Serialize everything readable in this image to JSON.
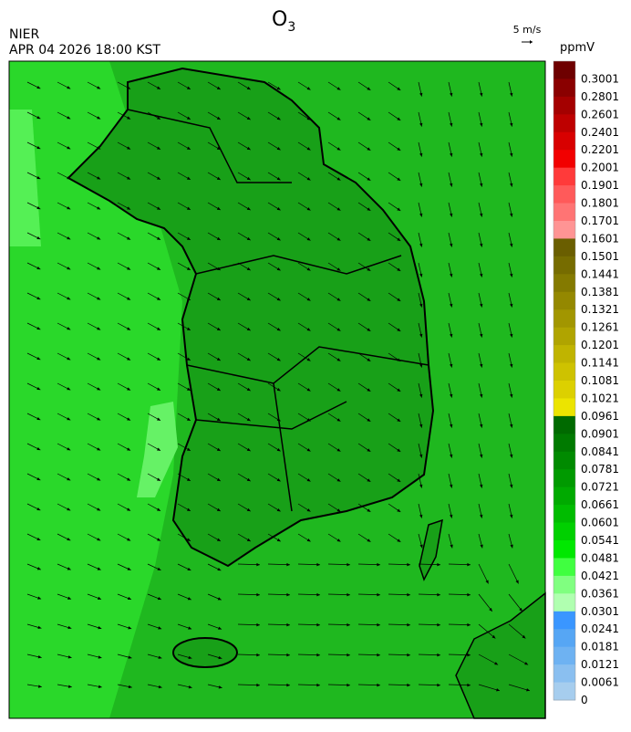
{
  "header": {
    "title": "O",
    "title_subscript": "3",
    "agency": "NIER",
    "timestamp": "APR 04 2026 18:00 KST"
  },
  "wind_scale": {
    "label": "5 m/s"
  },
  "legend": {
    "unit": "ppmV",
    "levels": [
      {
        "label": "0.3001",
        "color": "#6e0000"
      },
      {
        "label": "0.2801",
        "color": "#8a0000"
      },
      {
        "label": "0.2601",
        "color": "#a40000"
      },
      {
        "label": "0.2401",
        "color": "#be0000"
      },
      {
        "label": "0.2201",
        "color": "#d80000"
      },
      {
        "label": "0.2001",
        "color": "#f20000"
      },
      {
        "label": "0.1901",
        "color": "#ff3a3a"
      },
      {
        "label": "0.1801",
        "color": "#ff5a5a"
      },
      {
        "label": "0.1701",
        "color": "#ff7474"
      },
      {
        "label": "0.1601",
        "color": "#ff9494"
      },
      {
        "label": "0.1501",
        "color": "#6a5e00"
      },
      {
        "label": "0.1441",
        "color": "#766c00"
      },
      {
        "label": "0.1381",
        "color": "#847a00"
      },
      {
        "label": "0.1321",
        "color": "#948800"
      },
      {
        "label": "0.1261",
        "color": "#a29600"
      },
      {
        "label": "0.1201",
        "color": "#b0a400"
      },
      {
        "label": "0.1141",
        "color": "#c0b400"
      },
      {
        "label": "0.1081",
        "color": "#cec200"
      },
      {
        "label": "0.1021",
        "color": "#dcd000"
      },
      {
        "label": "0.0961",
        "color": "#ece400"
      },
      {
        "label": "0.0901",
        "color": "#006a00"
      },
      {
        "label": "0.0841",
        "color": "#007a00"
      },
      {
        "label": "0.0781",
        "color": "#008a00"
      },
      {
        "label": "0.0721",
        "color": "#009a00"
      },
      {
        "label": "0.0661",
        "color": "#00aa00"
      },
      {
        "label": "0.0601",
        "color": "#00bc00"
      },
      {
        "label": "0.0541",
        "color": "#00d000"
      },
      {
        "label": "0.0481",
        "color": "#00e800"
      },
      {
        "label": "0.0421",
        "color": "#40ff40"
      },
      {
        "label": "0.0361",
        "color": "#80ff80"
      },
      {
        "label": "0.0301",
        "color": "#b0ffb0"
      },
      {
        "label": "0.0241",
        "color": "#3a96ff"
      },
      {
        "label": "0.0181",
        "color": "#56a6f4"
      },
      {
        "label": "0.0121",
        "color": "#6eb2f2"
      },
      {
        "label": "0.0061",
        "color": "#8abff0"
      },
      {
        "label": "0",
        "color": "#a6cdee"
      }
    ]
  }
}
